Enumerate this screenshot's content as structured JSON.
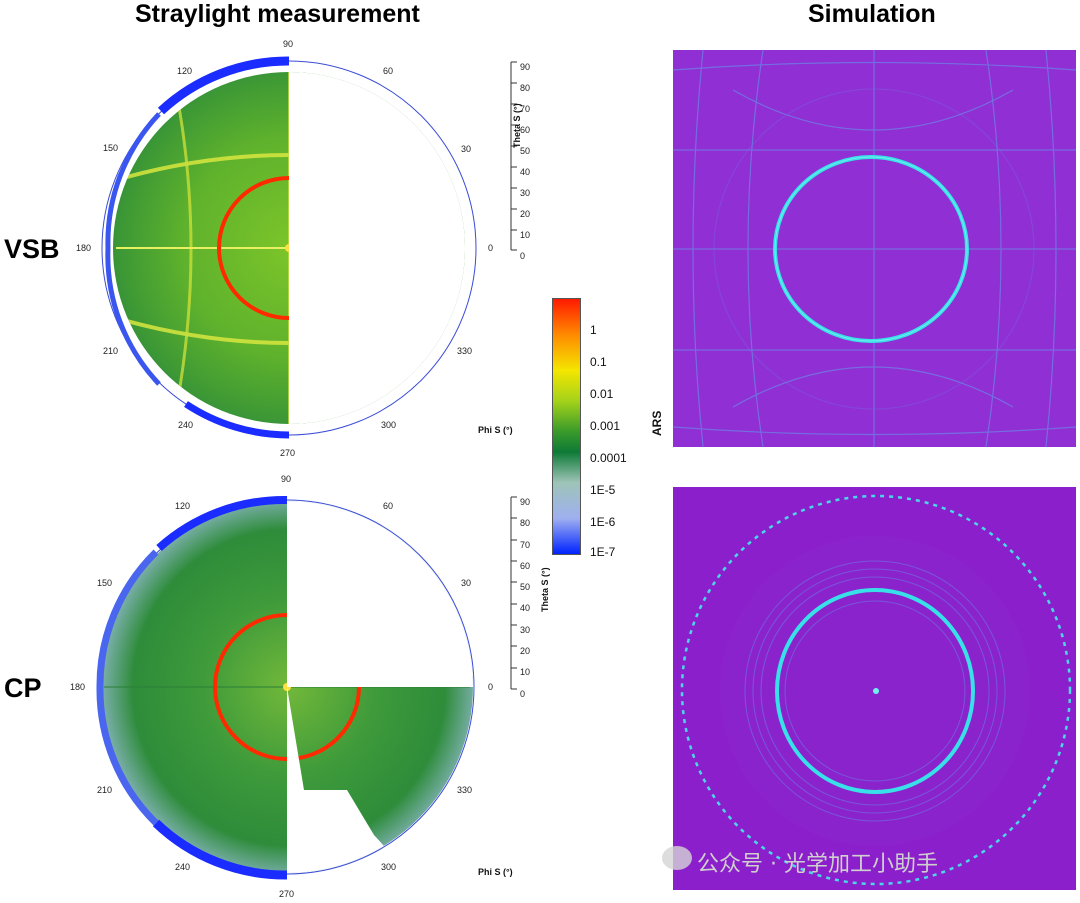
{
  "headers": {
    "measurement": "Straylight measurement",
    "simulation": "Simulation"
  },
  "rows": [
    {
      "label": "VSB"
    },
    {
      "label": "CP"
    }
  ],
  "polar": {
    "angle_ticks": [
      "90",
      "60",
      "30",
      "0",
      "330",
      "300",
      "270",
      "240",
      "210",
      "180",
      "150",
      "120"
    ],
    "phi_label": "Phi S (°)",
    "theta_label": "Theta S (°)",
    "theta_ticks": [
      "90",
      "80",
      "70",
      "60",
      "50",
      "40",
      "30",
      "20",
      "10",
      "0"
    ]
  },
  "colorbar": {
    "title": "ARS",
    "ticks": [
      "1",
      "0.1",
      "0.01",
      "0.001",
      "0.0001",
      "1E-5",
      "1E-6",
      "1E-7"
    ],
    "colors": [
      "#ff1a00",
      "#ff8a00",
      "#f4e600",
      "#a4d21a",
      "#3a9a2a",
      "#0e7a36",
      "#9ec4b8",
      "#9fb0f0",
      "#0022ff"
    ]
  },
  "watermark": "公众号 · 光学加工小助手"
}
